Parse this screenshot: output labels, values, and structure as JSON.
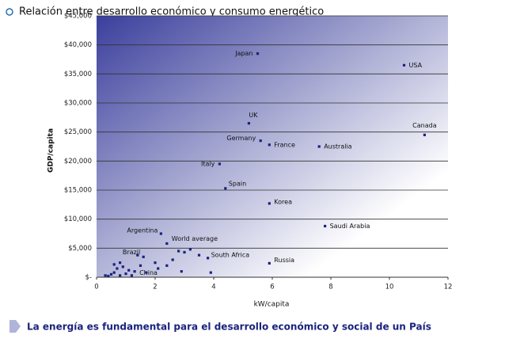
{
  "header": {
    "title": "Relación entre desarrollo económico y consumo energético"
  },
  "footer": {
    "text": "La energía es fundamental para el desarrollo económico y social de un País"
  },
  "chart_data": {
    "type": "scatter",
    "x_label": "kW/capita",
    "y_label": "GDP/capita",
    "color": "#1a237e",
    "xlim": [
      0,
      12
    ],
    "xticks": [
      0,
      2,
      4,
      6,
      8,
      10,
      12
    ],
    "ylim": [
      0,
      45000
    ],
    "yticks": [
      {
        "value": 0,
        "label": "$-"
      },
      {
        "value": 5000,
        "label": "$5,000"
      },
      {
        "value": 10000,
        "label": "$10,000"
      },
      {
        "value": 15000,
        "label": "$15,000"
      },
      {
        "value": 20000,
        "label": "$20,000"
      },
      {
        "value": 25000,
        "label": "$25,000"
      },
      {
        "value": 30000,
        "label": "$30,000"
      },
      {
        "value": 35000,
        "label": "$35,000"
      },
      {
        "value": 40000,
        "label": "$40,000"
      },
      {
        "value": 45000,
        "label": "$45,000"
      }
    ],
    "grid": true,
    "labels": [
      "Japan",
      "USA",
      "UK",
      "Canada",
      "Germany",
      "France",
      "Australia",
      "Italy",
      "Spain",
      "Korea",
      "Saudi Arabia",
      "Argentina",
      "World average",
      "Brazil",
      "South Africa",
      "Russia",
      "China",
      null,
      null,
      null,
      null,
      null,
      null,
      null,
      null,
      null,
      null,
      null,
      null,
      null,
      null,
      null,
      null,
      null,
      null,
      null,
      null,
      null,
      null,
      null,
      null,
      null
    ],
    "x": [
      5.5,
      10.5,
      5.2,
      11.2,
      5.6,
      5.9,
      7.6,
      4.2,
      4.4,
      5.9,
      7.8,
      2.2,
      2.4,
      1.6,
      3.8,
      5.9,
      1.3,
      0.3,
      0.4,
      0.5,
      0.6,
      0.7,
      0.6,
      0.8,
      0.9,
      1.0,
      1.1,
      1.2,
      1.5,
      1.7,
      2.0,
      2.1,
      2.4,
      2.6,
      2.8,
      3.0,
      3.2,
      3.5,
      2.9,
      3.9,
      0.8,
      1.4
    ],
    "values": [
      38500,
      36500,
      26500,
      24500,
      23500,
      22800,
      22500,
      19500,
      15300,
      12700,
      8800,
      7500,
      5800,
      3500,
      3300,
      2400,
      1000,
      300,
      200,
      500,
      800,
      1500,
      2200,
      2500,
      1800,
      600,
      1200,
      300,
      2000,
      800,
      2500,
      1500,
      2000,
      3000,
      4500,
      4300,
      4800,
      3800,
      1000,
      800,
      300,
      3800
    ]
  }
}
